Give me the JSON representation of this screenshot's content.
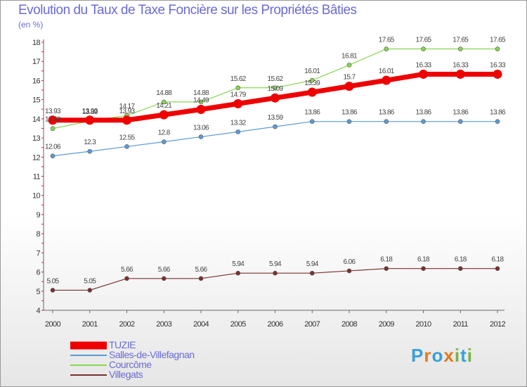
{
  "title": "Evolution du Taux de Taxe Foncière sur les Propriétés Bâties",
  "unit_label": "(en %)",
  "logo": {
    "text": "Proxiti",
    "letter_colors": [
      "#3aa0d8",
      "#e07a1f",
      "#3aa0d8",
      "#e07a1f",
      "#7ab33e",
      "#3aa0d8",
      "#7ab33e"
    ]
  },
  "chart_data": {
    "type": "line",
    "title": "Evolution du Taux de Taxe Foncière sur les Propriétés Bâties",
    "ylabel": "(en %)",
    "xlabel": "",
    "categories": [
      "2000",
      "2001",
      "2002",
      "2003",
      "2004",
      "2005",
      "2006",
      "2007",
      "2008",
      "2009",
      "2010",
      "2011",
      "2012"
    ],
    "ylim": [
      4,
      18
    ],
    "yticks": [
      4,
      5,
      6,
      7,
      8,
      9,
      10,
      11,
      12,
      13,
      14,
      15,
      16,
      17,
      18
    ],
    "grid": false,
    "legend_position": "bottom-left",
    "series": [
      {
        "name": "TUZIE",
        "color": "#ee0000",
        "values": [
          13.93,
          13.93,
          13.93,
          14.21,
          14.49,
          14.79,
          15.09,
          15.39,
          15.7,
          16.01,
          16.33,
          16.33,
          16.33
        ],
        "labels": [
          "13.93",
          "13.93",
          "13.93",
          "14.21",
          "14.49",
          "14.79",
          "15.09",
          "15.39",
          "15.7",
          "16.01",
          "16.33",
          "16.33",
          "16.33"
        ]
      },
      {
        "name": "Salles-de-Villefagnan",
        "color": "#5b9bd5",
        "values": [
          12.06,
          12.3,
          12.55,
          12.8,
          13.06,
          13.32,
          13.59,
          13.86,
          13.86,
          13.86,
          13.86,
          13.86,
          13.86
        ],
        "labels": [
          "12.06",
          "12.3",
          "12.55",
          "12.8",
          "13.06",
          "13.32",
          "13.59",
          "13.86",
          "13.86",
          "13.86",
          "13.86",
          "13.86",
          "13.86"
        ]
      },
      {
        "name": "Courcôme",
        "color": "#88d650",
        "values": [
          13.49,
          13.89,
          14.17,
          14.88,
          14.88,
          15.62,
          15.62,
          16.01,
          16.81,
          17.65,
          17.65,
          17.65,
          17.65
        ],
        "labels": [
          "13.49",
          "13.89",
          "14.17",
          "14.88",
          "14.88",
          "15.62",
          "15.62",
          "16.01",
          "16.81",
          "17.65",
          "17.65",
          "17.65",
          "17.65"
        ]
      },
      {
        "name": "Villegats",
        "color": "#7a3030",
        "values": [
          5.05,
          5.05,
          5.66,
          5.66,
          5.66,
          5.94,
          5.94,
          5.94,
          6.06,
          6.18,
          6.18,
          6.18,
          6.18
        ],
        "labels": [
          "5.05",
          "5.05",
          "5.66",
          "5.66",
          "5.66",
          "5.94",
          "5.94",
          "5.94",
          "6.06",
          "6.18",
          "6.18",
          "6.18",
          "6.18"
        ]
      }
    ]
  }
}
